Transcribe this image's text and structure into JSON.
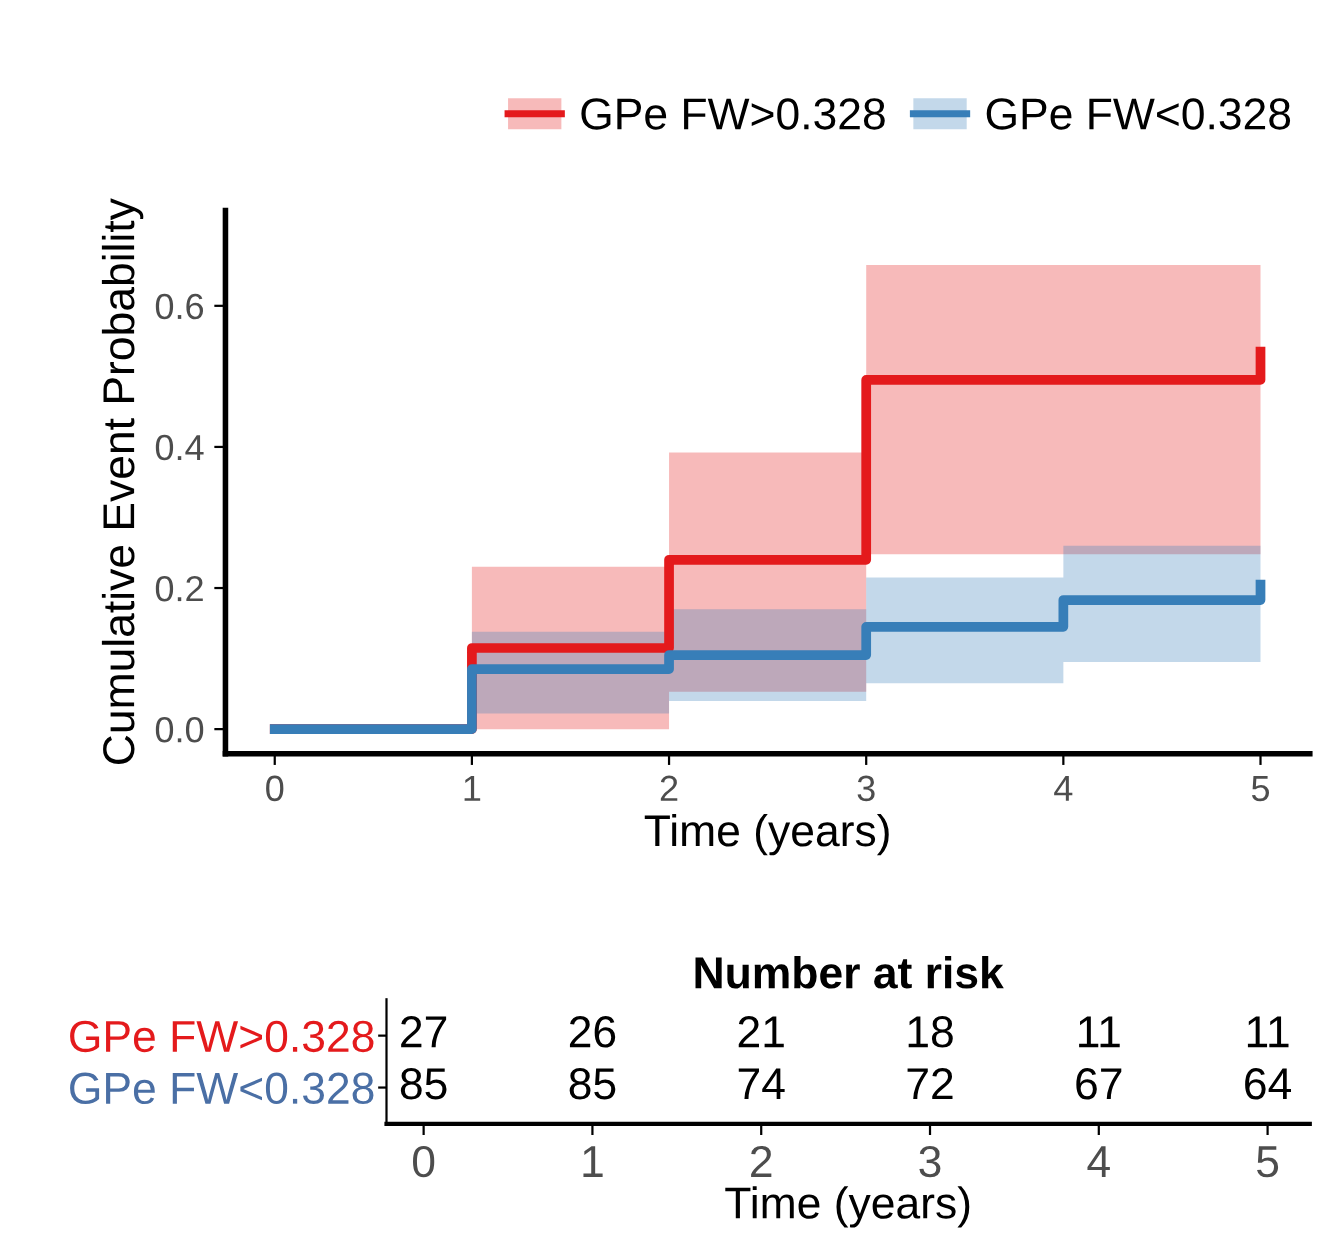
{
  "chart_data": [
    {
      "type": "step",
      "xlabel": "Time (years)",
      "ylabel": "Cumulative Event Probability",
      "xlim": [
        -0.25,
        5.25
      ],
      "ylim": [
        -0.035,
        0.735
      ],
      "xticks": [
        0,
        1,
        2,
        3,
        4,
        5
      ],
      "yticks": [
        {
          "value": 0,
          "label": "0.0"
        },
        0.2,
        0.4,
        0.6
      ],
      "legend": "top right",
      "grid": false,
      "series": [
        {
          "name": "GPe FW>0.328",
          "color": "#e41a1c",
          "x": [
            0,
            1,
            2,
            3,
            5
          ],
          "values": [
            0,
            0.115,
            0.24,
            0.495,
            0.535
          ],
          "lower": [
            0,
            0,
            0.053,
            0.248,
            0.248
          ],
          "upper": [
            0,
            0.23,
            0.392,
            0.658,
            0.658
          ]
        },
        {
          "name": "GPe FW<0.328",
          "color": "#377eb8",
          "x": [
            0,
            1,
            2,
            3,
            4,
            5
          ],
          "values": [
            0,
            0.085,
            0.105,
            0.145,
            0.183,
            0.205
          ],
          "lower": [
            0,
            0.022,
            0.04,
            0.065,
            0.095,
            0.095
          ],
          "upper": [
            0,
            0.138,
            0.17,
            0.215,
            0.26,
            0.26
          ]
        }
      ]
    },
    {
      "type": "heatmap",
      "title": "Number at risk",
      "xlabel": "Time (years)",
      "categories": [
        "0",
        "1",
        "2",
        "3",
        "4",
        "5"
      ],
      "y_categories": [
        "GPe FW>0.328",
        "GPe FW<0.328"
      ],
      "colors": [
        "#e41a1c",
        "#4a6fa5"
      ],
      "cells": [
        [
          27,
          26,
          21,
          18,
          11,
          11
        ],
        [
          85,
          85,
          74,
          72,
          67,
          64
        ]
      ],
      "data_labels": true
    }
  ]
}
